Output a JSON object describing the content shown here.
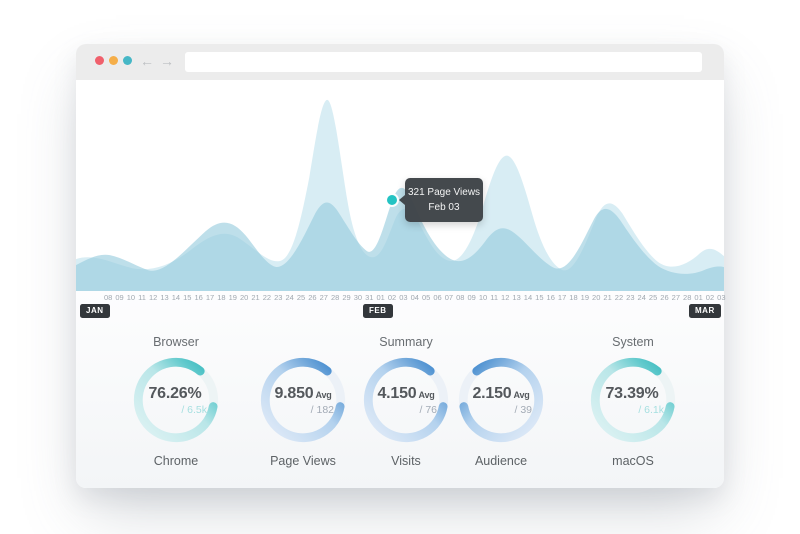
{
  "browser_window": {
    "traffic_lights": [
      {
        "name": "red",
        "color": "#f0606c"
      },
      {
        "name": "yellow",
        "color": "#f5ae49"
      },
      {
        "name": "teal",
        "color": "#46b7c6"
      }
    ],
    "nav": {
      "back": "←",
      "forward": "→"
    },
    "url_bar": {
      "value": "",
      "placeholder": ""
    }
  },
  "chart": {
    "type": "area",
    "series": [
      {
        "name": "back-wave",
        "fill": "#b2dbe9"
      },
      {
        "name": "front-wave",
        "fill": "#96cbdd"
      }
    ],
    "tooltip": {
      "line1": "321 Page Views",
      "line2": "Feb 03"
    },
    "highlighted_point": {
      "date": "Feb 03",
      "page_views": 321,
      "color": "#24c3c3"
    }
  },
  "timeline": {
    "months": [
      {
        "badge": "JAN",
        "days": [
          "08",
          "09",
          "10",
          "11",
          "12",
          "13",
          "14",
          "15",
          "16",
          "17",
          "18",
          "19",
          "20",
          "21",
          "22",
          "23",
          "24",
          "25",
          "26",
          "27",
          "28",
          "29",
          "30",
          "31"
        ]
      },
      {
        "badge": "FEB",
        "days": [
          "01",
          "02",
          "03",
          "04",
          "05",
          "06",
          "07",
          "08",
          "09",
          "10",
          "11",
          "12",
          "13",
          "14",
          "15",
          "16",
          "17",
          "18",
          "19",
          "20",
          "21",
          "22",
          "23",
          "24",
          "25",
          "26",
          "27",
          "28"
        ]
      },
      {
        "badge": "MAR",
        "days": [
          "01",
          "02",
          "03"
        ]
      }
    ]
  },
  "stats": {
    "section_titles": [
      "Browser",
      "Summary",
      "System"
    ],
    "donuts": [
      {
        "value": "76.26%",
        "unit": "",
        "sub": "/ 6.5k",
        "label": "Chrome",
        "theme": "teal"
      },
      {
        "value": "9.850",
        "unit": "Avg",
        "sub": "/ 182",
        "label": "Page Views",
        "theme": "blue"
      },
      {
        "value": "4.150",
        "unit": "Avg",
        "sub": "/ 76",
        "label": "Visits",
        "theme": "blue"
      },
      {
        "value": "2.150",
        "unit": "Avg",
        "sub": "/ 39",
        "label": "Audience",
        "theme": "blue"
      },
      {
        "value": "73.39%",
        "unit": "",
        "sub": "/ 6.1k",
        "label": "macOS",
        "theme": "teal"
      }
    ]
  },
  "colors": {
    "teal_accent": "#2cb5ba",
    "blue_accent": "#2e7ecb",
    "badge_bg": "#33373b",
    "tooltip_bg": "#3e4347",
    "topbar_bg": "#ececec"
  }
}
